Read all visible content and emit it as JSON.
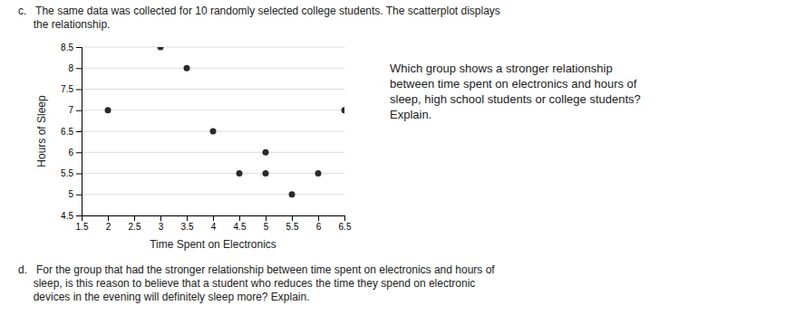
{
  "chart_data": {
    "type": "scatter",
    "title": "c.   The same data was collected for 10 randomly selected college students. The scatterplot displays\n     the relationship.",
    "x_label": "Time Spent on Electronics",
    "y_label": "Hours of Sleep",
    "x": [
      2.0,
      3.0,
      3.5,
      4.0,
      4.5,
      5.0,
      5.0,
      5.5,
      6.0,
      6.5
    ],
    "values": [
      7.0,
      8.5,
      8.0,
      6.5,
      5.5,
      6.0,
      5.5,
      5.0,
      5.5,
      7.0
    ],
    "color": "#2a2a2a",
    "xlim": [
      1.5,
      6.5
    ],
    "ylim": [
      4.5,
      8.5
    ],
    "xticks": [
      1.5,
      2,
      2.5,
      3,
      3.5,
      4,
      4.5,
      5,
      5.5,
      6,
      6.5
    ],
    "yticks": [
      4.5,
      5,
      5.5,
      6,
      6.5,
      7,
      7.5,
      8,
      8.5
    ],
    "grid": true,
    "annotations": [
      "Which group shows a stronger relationship\nbetween time spent on electronics and hours of\nsleep, high school students or college students?\nExplain.",
      "d.   For the group that had the stronger relationship between time spent on electronics and hours of\n     sleep, is this reason to believe that a student who reduces the time they spend on electronic\n     devices in the evening will definitely sleep more? Explain."
    ]
  }
}
